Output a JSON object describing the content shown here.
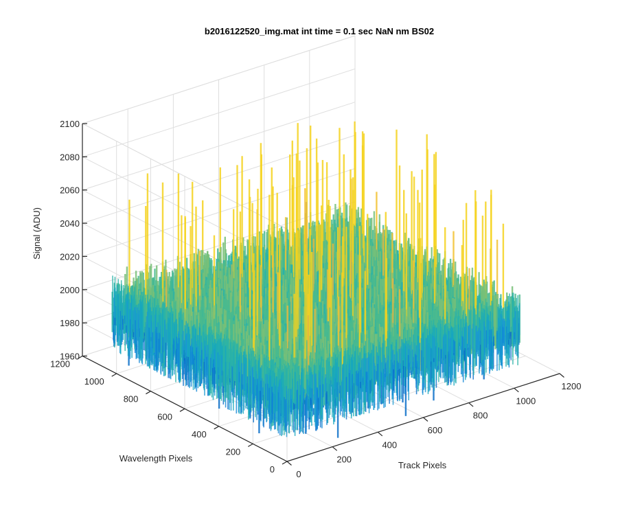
{
  "chart_data": {
    "type": "surface3d",
    "title": "b2016122520_img.mat int time = 0.1 sec  NaN nm BS02",
    "xlabel": "Track Pixels",
    "ylabel": "Wavelength Pixels",
    "zlabel": "Signal (ADU)",
    "xlim": [
      0,
      1200
    ],
    "ylim": [
      0,
      1200
    ],
    "zlim": [
      1960,
      2100
    ],
    "x_ticks": [
      "0",
      "200",
      "400",
      "600",
      "800",
      "1000",
      "1200"
    ],
    "y_ticks": [
      "0",
      "200",
      "400",
      "600",
      "800",
      "1000",
      "1200"
    ],
    "z_ticks": [
      "1960",
      "1980",
      "2000",
      "2020",
      "2040",
      "2060",
      "2080",
      "2100"
    ],
    "data_extent": {
      "x": [
        0,
        1024
      ],
      "y": [
        0,
        1024
      ]
    },
    "surface": {
      "mean": 2005,
      "typical_range": [
        1975,
        2045
      ],
      "max_spike": 2085,
      "min_spike": 1962,
      "colormap": "parula"
    },
    "grid": true,
    "box": "open"
  }
}
